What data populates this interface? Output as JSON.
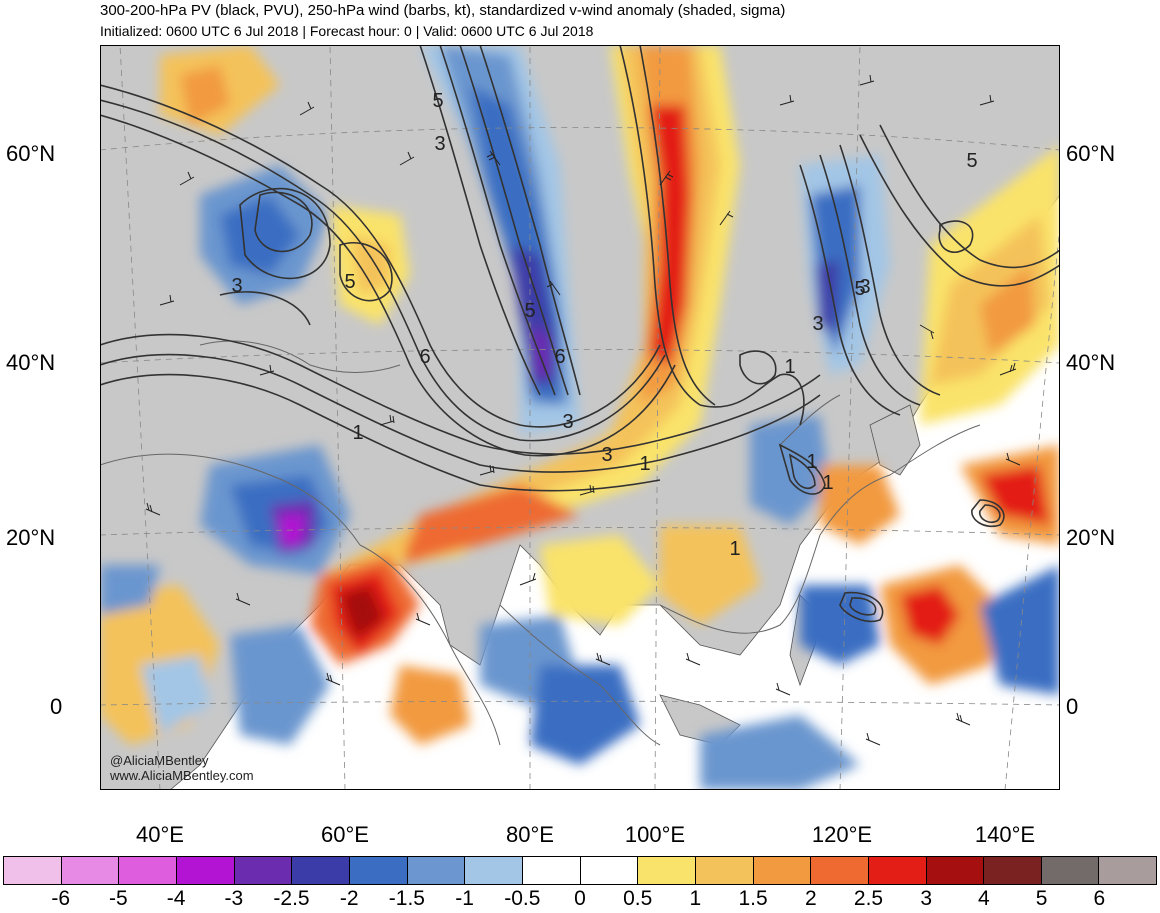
{
  "title": "300-200-hPa PV (black, PVU), 250-hPa wind (barbs, kt), standardized v-wind anomaly (shaded, sigma)",
  "subtitle": "Initialized: 0600 UTC 6 Jul 2018 | Forecast hour: 0 | Valid: 0600 UTC 6 Jul 2018",
  "lat_labels": [
    "60°N",
    "40°N",
    "20°N",
    "0"
  ],
  "lon_labels": [
    "40°E",
    "60°E",
    "80°E",
    "100°E",
    "120°E",
    "140°E"
  ],
  "contour_labels": [
    "5",
    "3",
    "3",
    "5",
    "6",
    "5",
    "6",
    "3",
    "3",
    "1",
    "1",
    "3",
    "5",
    "3",
    "1",
    "1",
    "1",
    "5",
    "1"
  ],
  "credit": {
    "handle": "@AliciaMBentley",
    "url": "www.AliciaMBentley.com"
  },
  "colorbar": {
    "colors": [
      "#f0c0ea",
      "#e68ae6",
      "#de5cde",
      "#b313d3",
      "#6b2cb0",
      "#3c3ca8",
      "#3b6ec2",
      "#6b96cf",
      "#a3c6e6",
      "#ffffff",
      "#ffffff",
      "#fae36a",
      "#f4c25a",
      "#f29a40",
      "#ee6a30",
      "#e31e16",
      "#a50f10",
      "#7a2222",
      "#736a6a",
      "#a89c9c"
    ],
    "labels": [
      "-6",
      "-5",
      "-4",
      "-3",
      "-2.5",
      "-2",
      "-1.5",
      "-1",
      "-0.5",
      "0",
      "0.5",
      "1",
      "1.5",
      "2",
      "2.5",
      "3",
      "4",
      "5",
      "6"
    ]
  }
}
